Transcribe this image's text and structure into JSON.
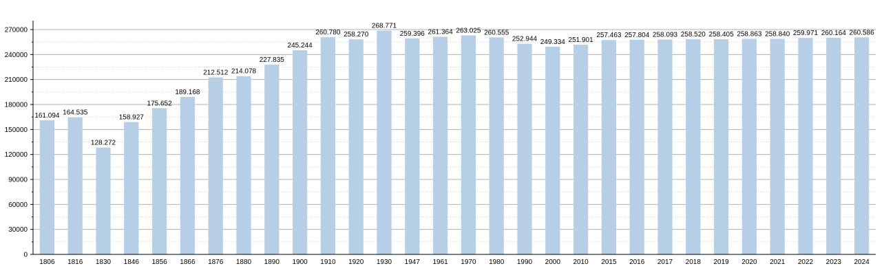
{
  "chart_data": {
    "type": "bar",
    "categories": [
      "1806",
      "1816",
      "1830",
      "1846",
      "1856",
      "1866",
      "1876",
      "1880",
      "1890",
      "1900",
      "1910",
      "1920",
      "1930",
      "1947",
      "1961",
      "1970",
      "1980",
      "1990",
      "2000",
      "2010",
      "2015",
      "2016",
      "2017",
      "2018",
      "2019",
      "2020",
      "2021",
      "2022",
      "2023",
      "2024"
    ],
    "values": [
      161094,
      164535,
      128272,
      158927,
      175652,
      189168,
      212512,
      214078,
      227835,
      245244,
      260780,
      258270,
      268771,
      259396,
      261364,
      263025,
      260555,
      252944,
      249334,
      251901,
      257463,
      257804,
      258093,
      258520,
      258405,
      258863,
      258840,
      259971,
      260164,
      260586
    ],
    "data_labels": [
      "161.094",
      "164.535",
      "128.272",
      "158.927",
      "175.652",
      "189.168",
      "212.512",
      "214.078",
      "227.835",
      "245.244",
      "260.780",
      "258.270",
      "268.771",
      "259.396",
      "261.364",
      "263.025",
      "260.555",
      "252.944",
      "249.334",
      "251.901",
      "257.463",
      "257.804",
      "258.093",
      "258.520",
      "258.405",
      "258.863",
      "258.840",
      "259.971",
      "260.164",
      "260.586"
    ],
    "yticks": [
      "0",
      "30000",
      "60000",
      "90000",
      "120000",
      "150000",
      "180000",
      "210000",
      "240000",
      "270000"
    ],
    "ylim": [
      0,
      270000
    ],
    "ytick_step": 30000,
    "minor_grid_step": 15000,
    "title": "",
    "xlabel": "",
    "ylabel": "",
    "grid": true,
    "bar_color": "#b6cfe6",
    "grid_color": "#d0d0d0",
    "major_grid_color": "#b0b0b0"
  }
}
